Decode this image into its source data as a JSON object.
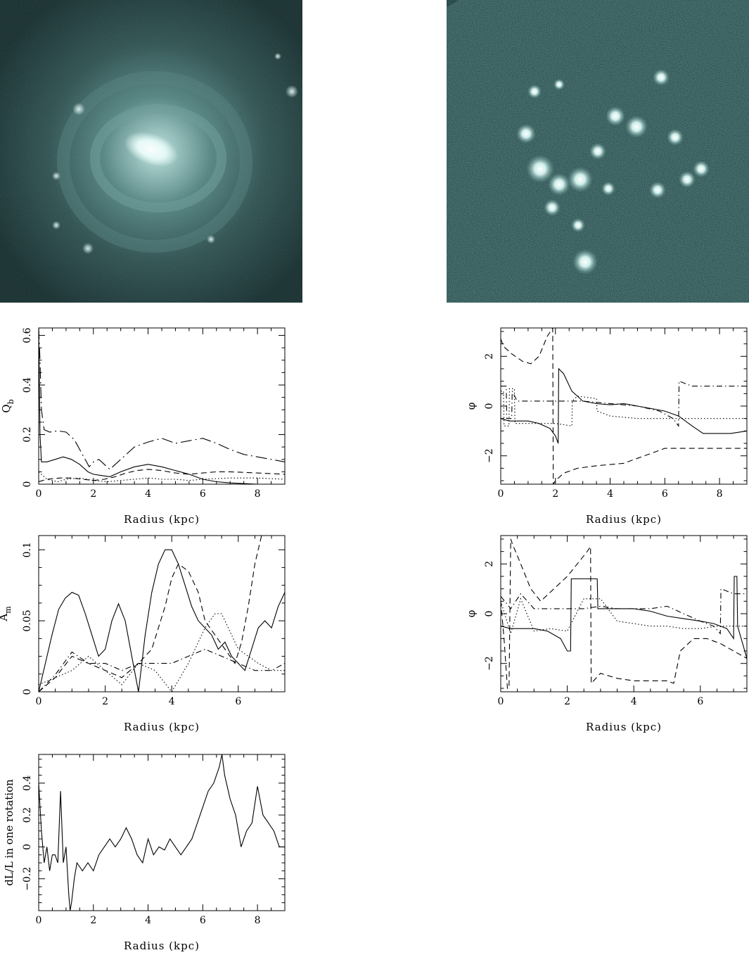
{
  "chart_data": [
    {
      "type": "line",
      "id": "qb",
      "xlabel": "Radius (kpc)",
      "ylabel_main": "Q",
      "ylabel_sub": "b",
      "xlim": [
        0,
        9
      ],
      "ylim": [
        0,
        0.63
      ],
      "xticks": [
        0,
        2,
        4,
        6,
        8
      ],
      "xtick_labels": [
        "0",
        "2",
        "4",
        "6",
        "8"
      ],
      "yticks": [
        0,
        0.2,
        0.4,
        0.6
      ],
      "ytick_labels": [
        "0",
        "0.2",
        "0.4",
        "0.6"
      ],
      "series": [
        {
          "style": "longdashdot",
          "x": [
            0,
            0.05,
            0.1,
            0.2,
            0.4,
            0.7,
            1.0,
            1.3,
            1.6,
            1.85,
            2.0,
            2.2,
            2.4,
            2.6,
            3.0,
            3.5,
            4.0,
            4.5,
            5.0,
            5.5,
            6.0,
            6.5,
            7.0,
            7.5,
            8.0,
            8.5,
            9.0
          ],
          "y": [
            0.63,
            0.5,
            0.3,
            0.22,
            0.21,
            0.215,
            0.21,
            0.18,
            0.12,
            0.07,
            0.09,
            0.1,
            0.08,
            0.06,
            0.1,
            0.15,
            0.17,
            0.185,
            0.165,
            0.175,
            0.185,
            0.165,
            0.14,
            0.12,
            0.11,
            0.1,
            0.09
          ]
        },
        {
          "style": "solid",
          "x": [
            0,
            0.05,
            0.1,
            0.3,
            0.6,
            0.9,
            1.2,
            1.5,
            1.8,
            2.0,
            2.3,
            2.6,
            3.0,
            3.5,
            4.0,
            4.5,
            5.0,
            5.5,
            6.0,
            6.5,
            7.0,
            8.0,
            9.0
          ],
          "y": [
            0.63,
            0.2,
            0.09,
            0.09,
            0.1,
            0.11,
            0.1,
            0.08,
            0.05,
            0.04,
            0.035,
            0.03,
            0.05,
            0.07,
            0.08,
            0.07,
            0.055,
            0.04,
            0.02,
            0.01,
            0.005,
            0,
            0
          ]
        },
        {
          "style": "dashed",
          "x": [
            0,
            0.3,
            0.8,
            1.2,
            1.6,
            2.0,
            2.4,
            2.8,
            3.2,
            3.6,
            4.0,
            4.5,
            5.0,
            5.5,
            6.0,
            6.5,
            7.0,
            8.0,
            9.0
          ],
          "y": [
            0.01,
            0.02,
            0.025,
            0.025,
            0.02,
            0.015,
            0.02,
            0.03,
            0.045,
            0.055,
            0.06,
            0.055,
            0.045,
            0.04,
            0.045,
            0.05,
            0.05,
            0.045,
            0.04
          ]
        },
        {
          "style": "dotted",
          "x": [
            0,
            0.3,
            0.7,
            1.0,
            1.5,
            2.0,
            2.5,
            3.0,
            3.5,
            4.0,
            4.5,
            5.0,
            5.5,
            6.0,
            7.0,
            8.0,
            9.0
          ],
          "y": [
            0.05,
            0.02,
            0.01,
            0.02,
            0.025,
            0.015,
            0.01,
            0.015,
            0.02,
            0.025,
            0.02,
            0.02,
            0.015,
            0.02,
            0.025,
            0.025,
            0.02
          ]
        }
      ]
    },
    {
      "type": "line",
      "id": "phi1",
      "xlabel": "Radius (kpc)",
      "ylabel_main": "φ",
      "xlim": [
        0,
        9
      ],
      "ylim": [
        -3.14,
        3.14
      ],
      "xticks": [
        0,
        2,
        4,
        6,
        8
      ],
      "xtick_labels": [
        "0",
        "2",
        "4",
        "6",
        "8"
      ],
      "yticks": [
        -2,
        0,
        2
      ],
      "ytick_labels": [
        "−2",
        "0",
        "2"
      ],
      "series": [
        {
          "style": "dashed",
          "x": [
            0,
            0.1,
            0.4,
            0.8,
            1.1,
            1.4,
            1.7,
            1.9,
            1.92,
            2.0,
            2.3,
            2.8,
            3.5,
            4.0,
            4.5,
            5.0,
            5.5,
            6.0,
            7.0,
            8.0,
            9.0
          ],
          "y": [
            2.7,
            2.4,
            2.1,
            1.8,
            1.7,
            2.0,
            2.8,
            3.14,
            -3.14,
            -3.0,
            -2.7,
            -2.5,
            -2.4,
            -2.35,
            -2.3,
            -2.1,
            -1.9,
            -1.7,
            -1.7,
            -1.7,
            -1.7
          ]
        },
        {
          "style": "solid",
          "x": [
            0,
            0.3,
            0.6,
            1.0,
            1.4,
            1.8,
            2.0,
            2.1,
            2.12,
            2.3,
            2.6,
            3.0,
            3.5,
            4.0,
            4.5,
            5.0,
            5.5,
            6.0,
            6.5,
            7.0,
            7.4,
            7.8,
            8.4,
            9.0
          ],
          "y": [
            -0.5,
            -0.6,
            -0.6,
            -0.6,
            -0.7,
            -0.9,
            -1.2,
            -1.5,
            1.5,
            1.3,
            0.6,
            0.2,
            0.1,
            0.05,
            0.1,
            0.0,
            -0.1,
            -0.2,
            -0.4,
            -0.8,
            -1.1,
            -1.1,
            -1.1,
            -1.0
          ]
        },
        {
          "style": "dotted",
          "x": [
            0,
            0.1,
            0.12,
            0.3,
            0.32,
            0.5,
            0.52,
            1.0,
            2.0,
            2.6,
            2.62,
            2.8,
            3.5,
            3.52,
            4.0,
            5.0,
            6.0,
            7.0,
            8.0,
            9.0
          ],
          "y": [
            0.6,
            0.6,
            -0.8,
            -0.8,
            0.7,
            0.7,
            -0.7,
            -0.7,
            -0.7,
            -0.8,
            0.2,
            0.4,
            0.3,
            -0.2,
            -0.4,
            -0.5,
            -0.5,
            -0.5,
            -0.5,
            -0.5
          ]
        },
        {
          "style": "dashdot",
          "x": [
            0,
            0.2,
            0.22,
            0.4,
            0.42,
            0.6,
            1.0,
            2.0,
            3.0,
            4.0,
            5.0,
            5.8,
            6.3,
            6.5,
            6.52,
            7.0,
            8.0,
            9.0
          ],
          "y": [
            0.8,
            0.8,
            -0.5,
            -0.5,
            0.6,
            0.2,
            0.2,
            0.2,
            0.2,
            0.1,
            0.0,
            -0.2,
            -0.5,
            -0.8,
            1.0,
            0.8,
            0.8,
            0.8
          ]
        }
      ]
    },
    {
      "type": "line",
      "id": "am",
      "xlabel": "Radius (kpc)",
      "ylabel_main": "A",
      "ylabel_sub": "m",
      "xlim": [
        0,
        7.4
      ],
      "ylim": [
        0,
        0.11
      ],
      "xticks": [
        0,
        2,
        4,
        6
      ],
      "xtick_labels": [
        "0",
        "2",
        "4",
        "6"
      ],
      "yticks": [
        0,
        0.05,
        0.1
      ],
      "ytick_labels": [
        "0",
        "0.05",
        "0.1"
      ],
      "series": [
        {
          "style": "solid",
          "x": [
            0,
            0.2,
            0.4,
            0.6,
            0.8,
            1.0,
            1.2,
            1.4,
            1.6,
            1.8,
            2.0,
            2.2,
            2.4,
            2.6,
            2.8,
            3.0,
            3.2,
            3.4,
            3.6,
            3.8,
            4.0,
            4.2,
            4.4,
            4.6,
            4.8,
            5.0,
            5.2,
            5.4,
            5.6,
            5.8,
            6.0,
            6.2,
            6.4,
            6.6,
            6.8,
            7.0,
            7.2,
            7.4
          ],
          "y": [
            0.0,
            0.02,
            0.04,
            0.058,
            0.066,
            0.07,
            0.068,
            0.055,
            0.04,
            0.025,
            0.03,
            0.05,
            0.062,
            0.05,
            0.025,
            0.0,
            0.04,
            0.07,
            0.09,
            0.1,
            0.1,
            0.09,
            0.075,
            0.06,
            0.05,
            0.045,
            0.04,
            0.03,
            0.035,
            0.025,
            0.02,
            0.015,
            0.03,
            0.045,
            0.05,
            0.045,
            0.06,
            0.07
          ]
        },
        {
          "style": "dashed",
          "x": [
            0,
            0.5,
            1.0,
            1.5,
            2.0,
            2.5,
            3.0,
            3.4,
            3.8,
            4.0,
            4.2,
            4.5,
            4.8,
            5.0,
            5.3,
            5.6,
            5.9,
            6.1,
            6.3,
            6.5,
            6.7
          ],
          "y": [
            0.0,
            0.01,
            0.025,
            0.02,
            0.015,
            0.01,
            0.02,
            0.03,
            0.06,
            0.08,
            0.09,
            0.085,
            0.07,
            0.05,
            0.04,
            0.03,
            0.02,
            0.035,
            0.06,
            0.09,
            0.11
          ]
        },
        {
          "style": "dotted",
          "x": [
            0,
            0.5,
            1.0,
            1.5,
            2.0,
            2.5,
            3.0,
            3.5,
            4.0,
            4.5,
            5.0,
            5.3,
            5.5,
            5.8,
            6.0,
            6.3,
            6.6,
            7.0,
            7.4
          ],
          "y": [
            0.005,
            0.01,
            0.015,
            0.025,
            0.015,
            0.005,
            0.02,
            0.015,
            0.0,
            0.02,
            0.045,
            0.055,
            0.055,
            0.04,
            0.03,
            0.025,
            0.02,
            0.015,
            0.015
          ]
        },
        {
          "style": "dashdot",
          "x": [
            0,
            0.5,
            1.0,
            1.5,
            2.0,
            2.5,
            3.0,
            3.5,
            4.0,
            4.5,
            5.0,
            5.5,
            6.0,
            6.5,
            7.0,
            7.4
          ],
          "y": [
            0.0,
            0.012,
            0.028,
            0.02,
            0.02,
            0.015,
            0.02,
            0.02,
            0.02,
            0.025,
            0.03,
            0.025,
            0.02,
            0.015,
            0.015,
            0.02
          ]
        }
      ]
    },
    {
      "type": "line",
      "id": "phi2",
      "xlabel": "Radius (kpc)",
      "ylabel_main": "φ",
      "xlim": [
        0,
        7.4
      ],
      "ylim": [
        -3.14,
        3.14
      ],
      "xticks": [
        0,
        2,
        4,
        6
      ],
      "xtick_labels": [
        "0",
        "2",
        "4",
        "6"
      ],
      "yticks": [
        -2,
        0,
        2
      ],
      "ytick_labels": [
        "−2",
        "0",
        "2"
      ],
      "series": [
        {
          "style": "dashed",
          "x": [
            0,
            0.1,
            0.2,
            0.25,
            0.3,
            0.35,
            0.6,
            0.9,
            1.2,
            1.6,
            2.0,
            2.3,
            2.6,
            2.7,
            2.72,
            3.0,
            3.5,
            4.0,
            4.5,
            5.0,
            5.2,
            5.4,
            5.8,
            6.2,
            6.6,
            7.0,
            7.4
          ],
          "y": [
            0.5,
            -1.0,
            -3.0,
            -3.0,
            3.0,
            2.8,
            2.0,
            1.0,
            0.5,
            1.0,
            1.5,
            2.0,
            2.5,
            2.7,
            -2.8,
            -2.4,
            -2.6,
            -2.7,
            -2.7,
            -2.7,
            -2.8,
            -1.5,
            -1.0,
            -1.0,
            -1.2,
            -1.5,
            -1.8
          ]
        },
        {
          "style": "solid",
          "x": [
            0,
            0.3,
            0.6,
            1.0,
            1.4,
            1.8,
            2.0,
            2.1,
            2.12,
            2.5,
            2.8,
            2.9,
            2.92,
            3.5,
            4.0,
            4.5,
            5.0,
            5.5,
            6.0,
            6.4,
            6.8,
            7.0,
            7.02,
            7.1,
            7.12,
            7.4
          ],
          "y": [
            -0.5,
            -0.6,
            -0.6,
            -0.6,
            -0.7,
            -1.0,
            -1.5,
            -1.5,
            1.4,
            1.4,
            1.4,
            1.4,
            0.2,
            0.2,
            0.2,
            0.1,
            -0.1,
            -0.2,
            -0.3,
            -0.4,
            -0.6,
            -1.0,
            1.5,
            1.5,
            -0.5,
            -1.8
          ]
        },
        {
          "style": "dotted",
          "x": [
            0,
            0.3,
            0.6,
            1.0,
            1.5,
            2.0,
            2.5,
            3.0,
            3.5,
            4.0,
            4.5,
            5.0,
            5.5,
            6.0,
            6.5,
            7.0,
            7.4
          ],
          "y": [
            0.5,
            -0.8,
            0.6,
            -0.7,
            -0.6,
            -0.7,
            0.6,
            0.6,
            -0.3,
            -0.4,
            -0.5,
            -0.5,
            -0.6,
            -0.6,
            -0.5,
            -0.5,
            -0.5
          ]
        },
        {
          "style": "dashdot",
          "x": [
            0,
            0.3,
            0.6,
            1.0,
            1.5,
            2.0,
            2.5,
            3.0,
            3.5,
            4.0,
            4.5,
            5.0,
            5.5,
            6.0,
            6.4,
            6.6,
            6.62,
            7.0,
            7.4
          ],
          "y": [
            0.7,
            0.2,
            0.8,
            0.2,
            0.2,
            0.2,
            0.2,
            0.3,
            0.2,
            0.2,
            0.2,
            0.3,
            0.0,
            -0.3,
            -0.5,
            -0.8,
            1.0,
            0.8,
            0.8
          ]
        }
      ]
    },
    {
      "type": "line",
      "id": "dl",
      "xlabel": "Radius (kpc)",
      "ylabel_main": "dL/L in one rotation",
      "xlim": [
        0,
        9
      ],
      "ylim": [
        -0.4,
        0.58
      ],
      "xticks": [
        0,
        2,
        4,
        6,
        8
      ],
      "xtick_labels": [
        "0",
        "2",
        "4",
        "6",
        "8"
      ],
      "yticks": [
        -0.2,
        0,
        0.2,
        0.4
      ],
      "ytick_labels": [
        "−0.2",
        "0",
        "0.2",
        "0.4"
      ],
      "series": [
        {
          "style": "solid",
          "x": [
            0,
            0.1,
            0.2,
            0.3,
            0.4,
            0.5,
            0.6,
            0.7,
            0.8,
            0.9,
            1.0,
            1.1,
            1.15,
            1.2,
            1.3,
            1.4,
            1.6,
            1.8,
            2.0,
            2.2,
            2.4,
            2.6,
            2.8,
            3.0,
            3.2,
            3.4,
            3.6,
            3.8,
            4.0,
            4.2,
            4.4,
            4.6,
            4.8,
            5.0,
            5.2,
            5.4,
            5.6,
            5.8,
            6.0,
            6.2,
            6.4,
            6.6,
            6.7,
            6.8,
            7.0,
            7.2,
            7.4,
            7.6,
            7.8,
            8.0,
            8.2,
            8.4,
            8.6,
            8.8,
            9.0
          ],
          "y": [
            0.4,
            0.1,
            -0.1,
            0.0,
            -0.15,
            -0.05,
            -0.05,
            -0.1,
            0.35,
            -0.1,
            0.0,
            -0.3,
            -0.4,
            -0.35,
            -0.2,
            -0.1,
            -0.15,
            -0.1,
            -0.15,
            -0.05,
            0.0,
            0.05,
            0.0,
            0.05,
            0.12,
            0.05,
            -0.05,
            -0.1,
            0.05,
            -0.05,
            0.0,
            -0.02,
            0.05,
            0.0,
            -0.05,
            0.0,
            0.05,
            0.15,
            0.25,
            0.35,
            0.4,
            0.5,
            0.58,
            0.45,
            0.3,
            0.2,
            0.0,
            0.1,
            0.15,
            0.38,
            0.2,
            0.15,
            0.1,
            0.0,
            0.0
          ]
        }
      ]
    }
  ]
}
